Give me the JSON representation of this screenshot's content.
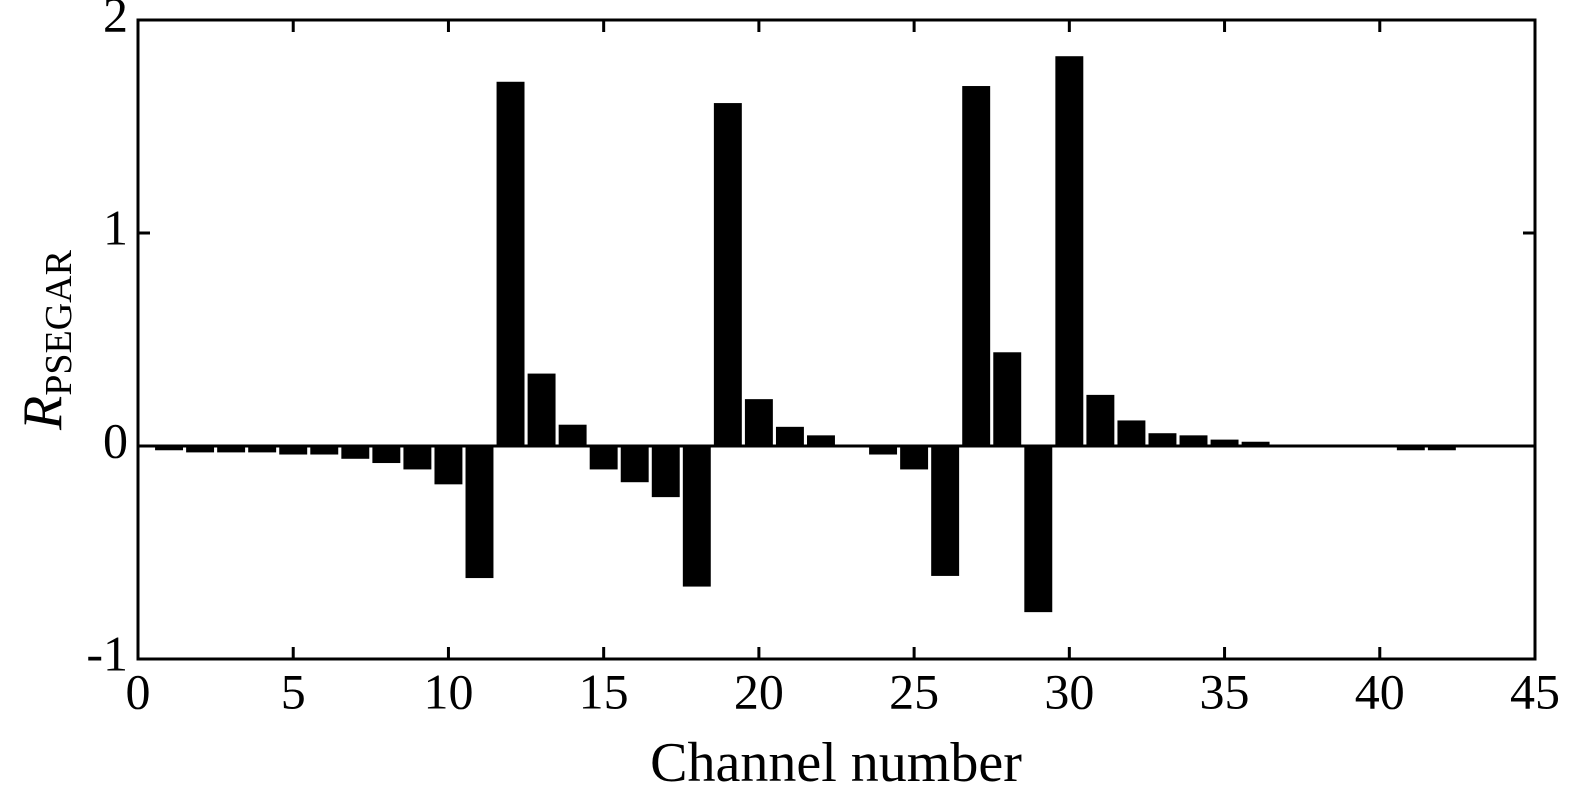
{
  "chart_data": {
    "type": "bar",
    "ylabel": "R",
    "ylabel_subscript": "PSEGAR",
    "xlabel": "Channel number",
    "x": [
      1,
      2,
      3,
      4,
      5,
      6,
      7,
      8,
      9,
      10,
      11,
      12,
      13,
      14,
      15,
      16,
      17,
      18,
      19,
      20,
      21,
      22,
      23,
      24,
      25,
      26,
      27,
      28,
      29,
      30,
      31,
      32,
      33,
      34,
      35,
      36,
      37,
      38,
      39,
      40,
      41,
      42
    ],
    "values": [
      -0.02,
      -0.03,
      -0.03,
      -0.03,
      -0.04,
      -0.04,
      -0.06,
      -0.08,
      -0.11,
      -0.18,
      -0.62,
      1.71,
      0.34,
      0.1,
      -0.11,
      -0.17,
      -0.24,
      -0.66,
      1.61,
      0.22,
      0.09,
      0.05,
      0,
      -0.04,
      -0.11,
      -0.61,
      1.69,
      0.44,
      -0.78,
      1.83,
      0.24,
      0.12,
      0.06,
      0.05,
      0.03,
      0.02,
      0.003,
      0.003,
      0.003,
      0.003,
      -0.02,
      -0.02
    ],
    "color": "#000000",
    "xlim": [
      0,
      45
    ],
    "xticks": [
      0,
      5,
      10,
      15,
      20,
      25,
      30,
      35,
      40,
      45
    ],
    "ylim": [
      -1,
      2
    ],
    "yticks": [
      -1,
      0,
      1,
      2
    ],
    "grid": false
  }
}
